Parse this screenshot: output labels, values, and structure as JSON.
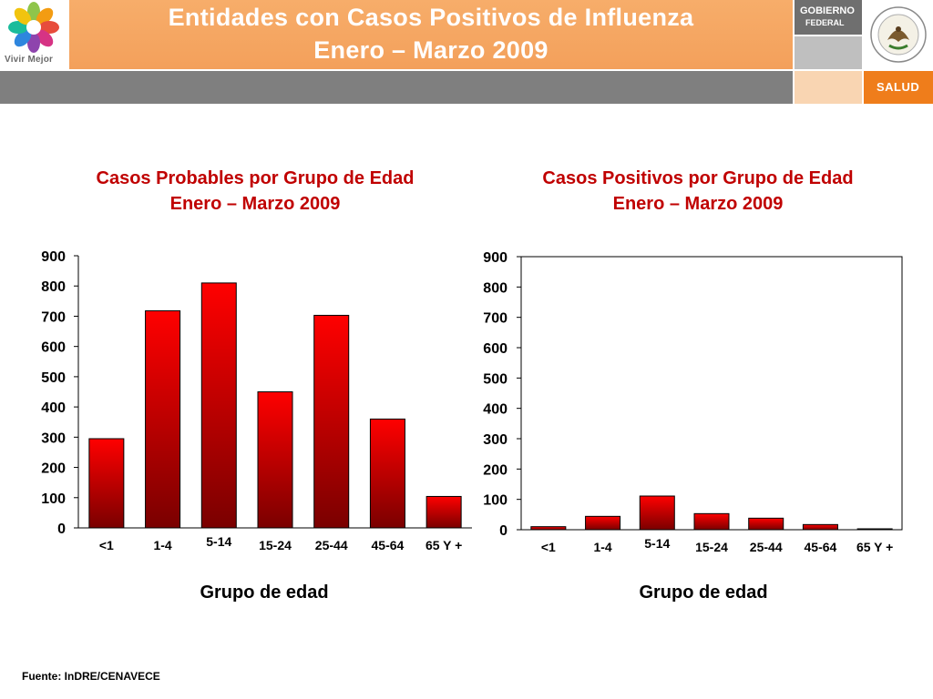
{
  "header": {
    "logo_text": "Vivir Mejor",
    "title_line1": "Entidades con Casos Positivos de Influenza",
    "title_line2": "Enero – Marzo 2009",
    "gobierno_line1": "GOBIERNO",
    "gobierno_line2": "FEDERAL",
    "salud_label": "SALUD"
  },
  "colors": {
    "header_orange": "#f3a05b",
    "band_gray": "#7f7f7f",
    "salud_orange": "#ef7d1b",
    "bar_top": "#ff0000",
    "bar_bottom": "#7a0000",
    "title_red": "#c00000"
  },
  "chart_data": [
    {
      "type": "bar",
      "title_line1": "Casos Probables por Grupo de Edad",
      "title_line2": "Enero – Marzo 2009",
      "xlabel": "Grupo de edad",
      "ylabel": "",
      "categories": [
        "<1",
        "1-4",
        "5-14",
        "15-24",
        "25-44",
        "45-64",
        "65 Y +"
      ],
      "values": [
        295,
        718,
        810,
        450,
        703,
        360,
        104
      ],
      "ylim": [
        0,
        900
      ],
      "yticks": [
        0,
        100,
        200,
        300,
        400,
        500,
        600,
        700,
        800,
        900
      ],
      "grid": false,
      "frame": false
    },
    {
      "type": "bar",
      "title_line1": "Casos Positivos por Grupo de Edad",
      "title_line2": "Enero – Marzo 2009",
      "xlabel": "Grupo de edad",
      "ylabel": "",
      "categories": [
        "<1",
        "1-4",
        "5-14",
        "15-24",
        "25-44",
        "45-64",
        "65 Y +"
      ],
      "values": [
        10,
        44,
        111,
        53,
        38,
        17,
        3
      ],
      "ylim": [
        0,
        900
      ],
      "yticks": [
        0,
        100,
        200,
        300,
        400,
        500,
        600,
        700,
        800,
        900
      ],
      "grid": false,
      "frame": true
    }
  ],
  "footer": {
    "source": "Fuente: InDRE/CENAVECE"
  }
}
